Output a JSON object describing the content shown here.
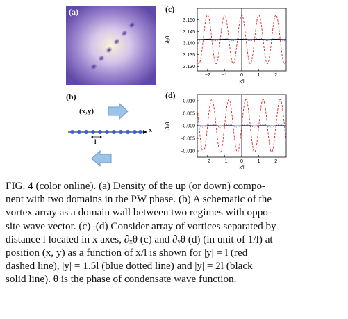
{
  "panels": {
    "a": {
      "letter": "(a)"
    },
    "b": {
      "letter": "(b)",
      "coord_label": "(x,y)",
      "axis_label": "x",
      "spacing_label": "l"
    },
    "c": {
      "letter": "(c)",
      "ylabel": "∂ₓθ",
      "xlabel": "x/l"
    },
    "d": {
      "letter": "(d)",
      "ylabel": "∂ᵧθ",
      "xlabel": "x/l"
    }
  },
  "chart_data": [
    {
      "type": "line",
      "panel": "c",
      "xlabel": "x/l",
      "ylabel": "∂ₓθ",
      "xlim": [
        -2.6,
        2.6
      ],
      "ylim": [
        3.128,
        3.155
      ],
      "xticks": [
        "−2",
        "−1",
        "0",
        "1",
        "2"
      ],
      "yticks": [
        "3.150",
        "3.145",
        "3.140",
        "3.135",
        "3.130"
      ],
      "series": [
        {
          "style": "red dashed",
          "color": "#e0201e",
          "form": "cosine",
          "offset": 3.1416,
          "amplitude": 0.0105,
          "period": 1.0
        },
        {
          "style": "blue dotted",
          "color": "#3a5bd9",
          "form": "cosine",
          "offset": 3.1416,
          "amplitude": 0.0006,
          "period": 1.0
        },
        {
          "style": "black solid",
          "color": "#000000",
          "form": "cosine",
          "offset": 3.1416,
          "amplitude": 5e-05,
          "period": 1.0
        }
      ]
    },
    {
      "type": "line",
      "panel": "d",
      "xlabel": "x/l",
      "ylabel": "∂ᵧθ",
      "xlim": [
        -2.6,
        2.6
      ],
      "ylim": [
        -0.0125,
        0.0125
      ],
      "xticks": [
        "−2",
        "−1",
        "0",
        "1",
        "2"
      ],
      "yticks": [
        "0.010",
        "0.005",
        "0.000",
        "−0.005",
        "−0.010"
      ],
      "series": [
        {
          "style": "red dashed",
          "color": "#e0201e",
          "form": "sine",
          "offset": 0,
          "amplitude": 0.0105,
          "period": 1.0
        },
        {
          "style": "blue dotted",
          "color": "#3a5bd9",
          "form": "sine",
          "offset": 0,
          "amplitude": 0.0006,
          "period": 1.0
        },
        {
          "style": "black solid",
          "color": "#000000",
          "form": "sine",
          "offset": 0,
          "amplitude": 5e-05,
          "period": 1.0
        }
      ]
    }
  ],
  "caption": {
    "lines": [
      "FIG. 4 (color online).   (a) Density of the up (or down) compo-",
      "nent with two domains in the PW phase. (b) A schematic of the",
      "vortex array as a domain wall between two regimes with oppo-",
      "site wave vector. (c)–(d) Consider array of vortices separated by",
      "distance l located in x axes, ∂ₓθ (c) and ∂ᵧθ (d) (in unit of 1/l) at",
      "position (x, y) as a function of x/l is shown for |y| = l (red",
      "dashed line), |y| = 1.5l (blue dotted line) and |y| = 2l (black",
      "solid line). θ is the phase of condensate wave function."
    ]
  }
}
